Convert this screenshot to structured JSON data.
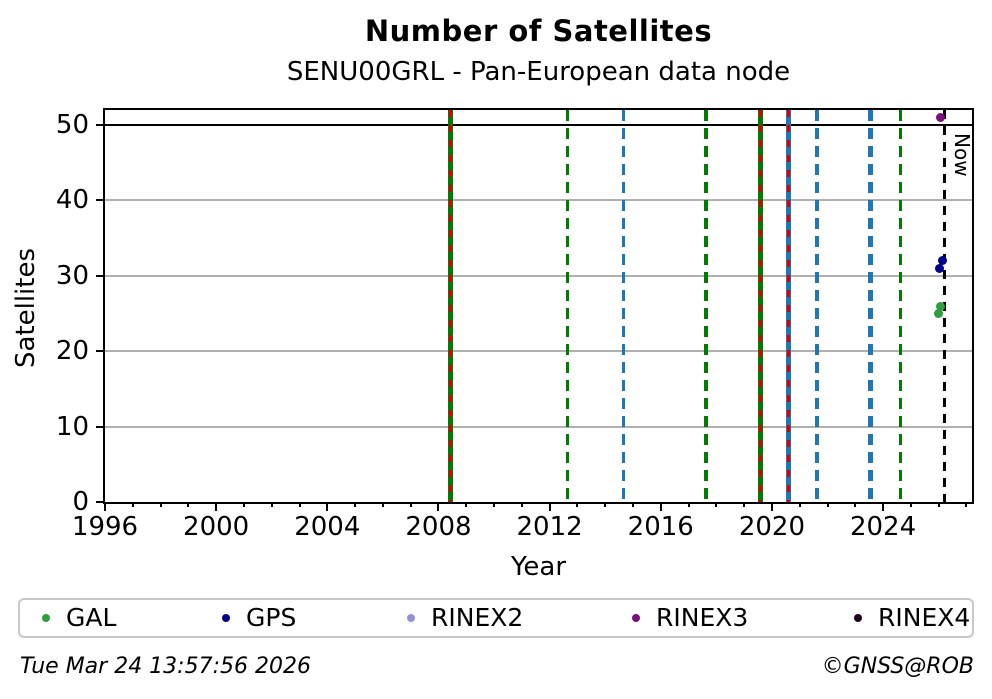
{
  "chart_data": {
    "type": "scatter",
    "title": "Number of Satellites",
    "subtitle": "SENU00GRL - Pan-European data node",
    "xlabel": "Year",
    "ylabel": "Satellites",
    "xlim": [
      1996,
      2027.2
    ],
    "ylim": [
      0,
      52
    ],
    "x_major_ticks": [
      1996,
      2000,
      2004,
      2008,
      2012,
      2016,
      2020,
      2024
    ],
    "x_minor_tick_step_years": 1,
    "y_ticks": [
      0,
      10,
      20,
      30,
      40,
      50
    ],
    "grid_y_values": [
      10,
      20,
      30,
      40
    ],
    "grid_color": "#b0b0b0",
    "grid_on": true,
    "legend_position": "bottom",
    "hline": {
      "y": 50,
      "color": "#000000"
    },
    "event_vlines": [
      {
        "x": 2008.45,
        "color": "#007d00",
        "style": "solid",
        "width": 5,
        "overlay_color": "#dd0000",
        "overlay_style": "dashed"
      },
      {
        "x": 2012.65,
        "color": "#007d00",
        "style": "dashed",
        "width": 3.5
      },
      {
        "x": 2014.65,
        "color": "#1f77b4",
        "style": "dashed",
        "width": 3.5
      },
      {
        "x": 2017.62,
        "color": "#007d00",
        "style": "dashed",
        "width": 3.5
      },
      {
        "x": 2019.6,
        "color": "#007d00",
        "style": "solid",
        "width": 5,
        "overlay_color": "#dd0000",
        "overlay_style": "dashed"
      },
      {
        "x": 2020.6,
        "color": "#1f77b4",
        "style": "solid",
        "width": 5,
        "overlay_color": "#dd0000",
        "overlay_style": "dashed"
      },
      {
        "x": 2021.63,
        "color": "#1f77b4",
        "style": "dashed",
        "width": 3.5
      },
      {
        "x": 2023.55,
        "color": "#1f77b4",
        "style": "dashed",
        "width": 5.5
      },
      {
        "x": 2024.62,
        "color": "#007d00",
        "style": "dashed",
        "width": 3.5
      }
    ],
    "now_line": {
      "x": 2026.2,
      "label": "Now",
      "color": "#000000",
      "style": "dashed",
      "width": 3
    },
    "series": [
      {
        "name": "GAL",
        "color": "#2e9e3e",
        "points": [
          [
            2025.98,
            25
          ],
          [
            2026.07,
            26
          ]
        ]
      },
      {
        "name": "GPS",
        "color": "#00008b",
        "points": [
          [
            2026.04,
            31
          ],
          [
            2026.13,
            32
          ]
        ]
      },
      {
        "name": "RINEX2",
        "color": "#9292d6",
        "points": []
      },
      {
        "name": "RINEX3",
        "color": "#7a117a",
        "points": [
          [
            2026.07,
            51
          ]
        ]
      },
      {
        "name": "RINEX4",
        "color": "#210021",
        "points": []
      }
    ]
  },
  "footer": {
    "timestamp": "Tue Mar 24 13:57:56 2026",
    "credit": "©GNSS@ROB"
  }
}
